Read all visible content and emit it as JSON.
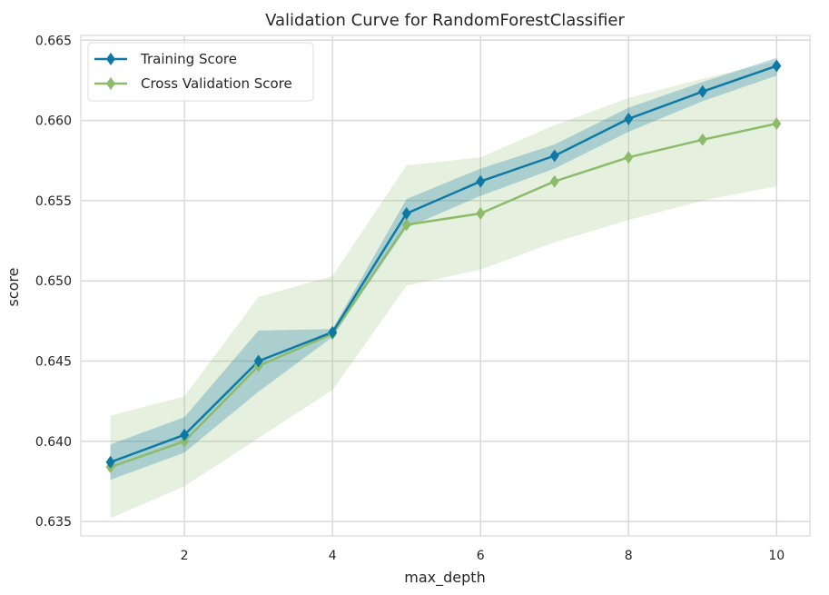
{
  "chart_data": {
    "type": "line",
    "title": "Validation Curve for RandomForestClassifier",
    "xlabel": "max_depth",
    "ylabel": "score",
    "x": [
      1,
      2,
      3,
      4,
      5,
      6,
      7,
      8,
      9,
      10
    ],
    "xticks": [
      2,
      4,
      6,
      8,
      10
    ],
    "xlim": [
      0.6,
      10.45
    ],
    "yticks": [
      0.635,
      0.64,
      0.645,
      0.65,
      0.655,
      0.66,
      0.665
    ],
    "ytick_labels": [
      "0.635",
      "0.640",
      "0.645",
      "0.650",
      "0.655",
      "0.660",
      "0.665"
    ],
    "ylim": [
      0.6341,
      0.6653
    ],
    "grid": true,
    "legend_position": "top-left",
    "series": [
      {
        "name": "Training Score",
        "color": "#0f79a6",
        "values": [
          0.6387,
          0.6404,
          0.645,
          0.6468,
          0.6542,
          0.6562,
          0.6578,
          0.6601,
          0.6618,
          0.6634
        ],
        "band_lower": [
          0.6376,
          0.6393,
          0.6431,
          0.6465,
          0.6533,
          0.6553,
          0.657,
          0.6593,
          0.6612,
          0.6628
        ],
        "band_upper": [
          0.6398,
          0.6415,
          0.6469,
          0.647,
          0.6551,
          0.657,
          0.6585,
          0.6608,
          0.6624,
          0.6639
        ]
      },
      {
        "name": "Cross Validation Score",
        "color": "#8cbb6b",
        "values": [
          0.6384,
          0.64,
          0.6447,
          0.6467,
          0.6535,
          0.6542,
          0.6562,
          0.6577,
          0.6588,
          0.6598
        ],
        "band_lower": [
          0.6352,
          0.6372,
          0.6402,
          0.6432,
          0.6497,
          0.6507,
          0.6524,
          0.6538,
          0.655,
          0.6559
        ],
        "band_upper": [
          0.6416,
          0.6428,
          0.649,
          0.6503,
          0.6572,
          0.6577,
          0.6597,
          0.6614,
          0.6626,
          0.6637
        ]
      }
    ]
  }
}
